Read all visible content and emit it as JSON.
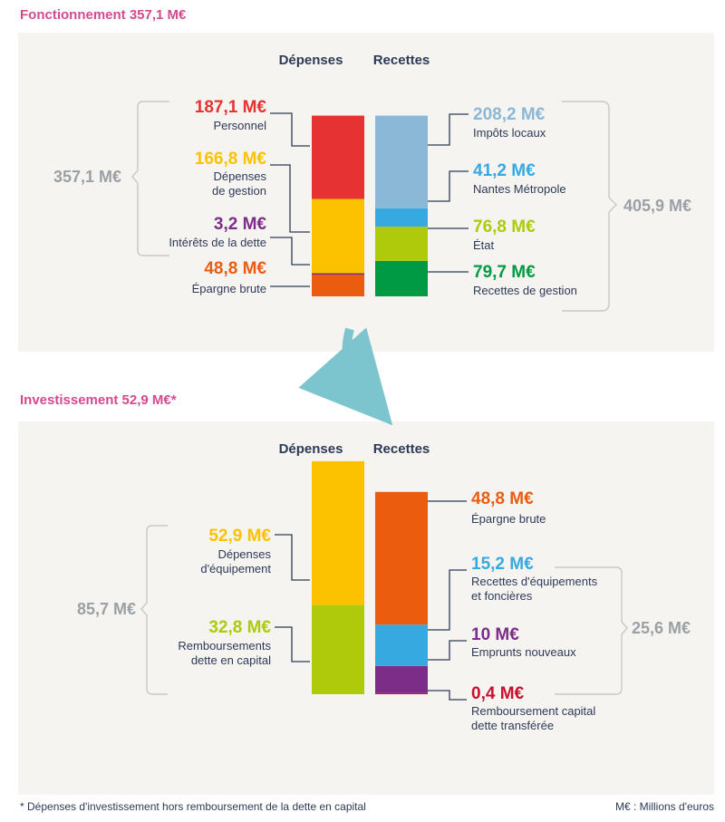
{
  "chart_data": [
    {
      "type": "bar",
      "title": "Fonctionnement 357,1 M€",
      "unit": "M€",
      "column_headers": [
        "Dépenses",
        "Recettes"
      ],
      "depenses": {
        "total": "357,1 M€",
        "items": [
          {
            "value": 187.1,
            "value_label": "187,1 M€",
            "label": "Personnel",
            "color": "#e63232"
          },
          {
            "value": 166.8,
            "value_label": "166,8 M€",
            "label": "Dépenses de gestion",
            "color": "#fcc200"
          },
          {
            "value": 3.2,
            "value_label": "3,2 M€",
            "label": "Intérêts de la dette",
            "color": "#7b2d87"
          },
          {
            "value": 48.8,
            "value_label": "48,8 M€",
            "label": "Épargne brute",
            "color": "#eb5c0f"
          }
        ]
      },
      "recettes": {
        "total": "405,9 M€",
        "items": [
          {
            "value": 208.2,
            "value_label": "208,2 M€",
            "label": "Impôts locaux",
            "color": "#8bb8d6"
          },
          {
            "value": 41.2,
            "value_label": "41,2 M€",
            "label": "Nantes Métropole",
            "color": "#36a9e1"
          },
          {
            "value": 76.8,
            "value_label": "76,8 M€",
            "label": "État",
            "color": "#afca0b"
          },
          {
            "value": 79.7,
            "value_label": "79,7 M€",
            "label": "Recettes de gestion",
            "color": "#009a44"
          }
        ]
      }
    },
    {
      "type": "bar",
      "title": "Investissement 52,9 M€*",
      "unit": "M€",
      "column_headers": [
        "Dépenses",
        "Recettes"
      ],
      "depenses": {
        "total": "85,7 M€",
        "items": [
          {
            "value": 52.9,
            "value_label": "52,9 M€",
            "label": "Dépenses d'équipement",
            "color": "#fcc200"
          },
          {
            "value": 32.8,
            "value_label": "32,8 M€",
            "label": "Remboursements dette en capital",
            "color": "#afca0b"
          }
        ]
      },
      "recettes": {
        "total": "25,6 M€",
        "items": [
          {
            "value": 48.8,
            "value_label": "48,8 M€",
            "label": "Épargne brute",
            "color": "#eb5c0f"
          },
          {
            "value": 15.2,
            "value_label": "15,2 M€",
            "label": "Recettes d'équipements et foncières",
            "color": "#36a9e1"
          },
          {
            "value": 10,
            "value_label": "10 M€",
            "label": "Emprunts nouveaux",
            "color": "#7b2d87"
          },
          {
            "value": 0.4,
            "value_label": "0,4 M€",
            "label": "Remboursement capital dette transférée",
            "color": "#c8102e"
          }
        ]
      }
    }
  ],
  "colors": {
    "title": "#d44a8f",
    "panel": "#f6f4f1",
    "arrow": "#7cc5cf",
    "text": "#2d3a57",
    "total": "#9aa0a6"
  },
  "footnote": "* Dépenses d'investissement hors remboursement de la dette en capital",
  "legend_unit": "M€ : Millions d'euros"
}
